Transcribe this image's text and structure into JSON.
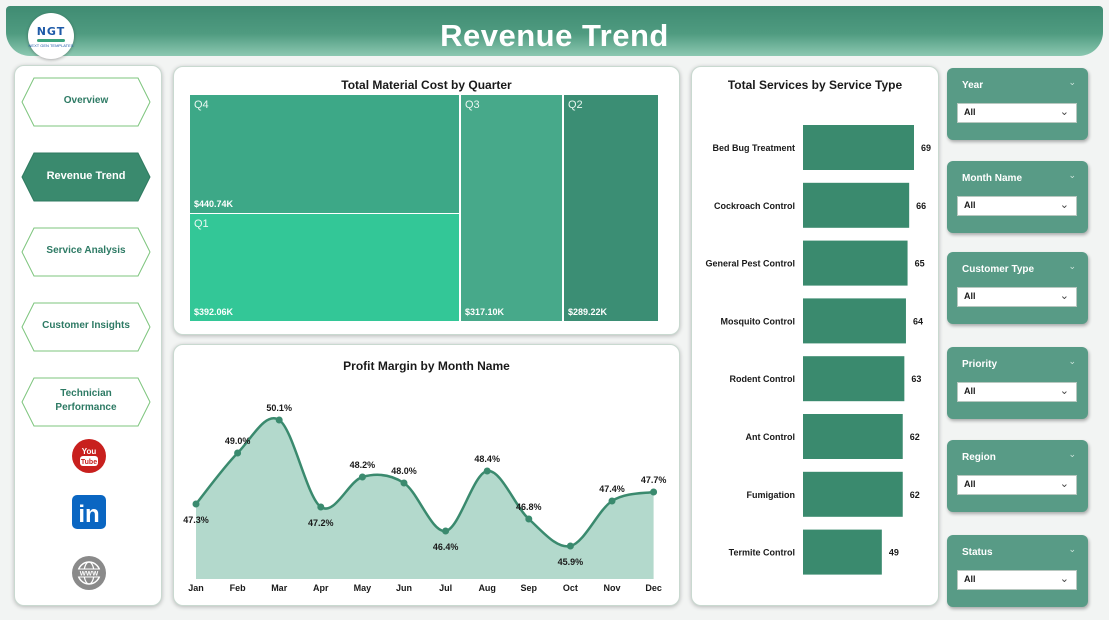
{
  "header": {
    "title": "Revenue Trend",
    "logo_text": "NGT",
    "logo_subtext": "NEXT GEN TEMPLATES"
  },
  "nav": {
    "items": [
      {
        "label": "Overview",
        "active": false
      },
      {
        "label": "Revenue Trend",
        "active": true
      },
      {
        "label": "Service Analysis",
        "active": false
      },
      {
        "label": "Customer Insights",
        "active": false
      },
      {
        "label": "Technician Performance",
        "active": false
      }
    ],
    "social": [
      {
        "name": "youtube",
        "label": "You Tube"
      },
      {
        "name": "linkedin",
        "label": "in"
      },
      {
        "name": "website",
        "label": "www"
      }
    ]
  },
  "colors": {
    "accent": "#3a8a6e",
    "header": "#4f9b80",
    "slicer": "#589b86",
    "treemap_q4": "#3da887",
    "treemap_q1": "#33c797",
    "treemap_q3": "#47a98a",
    "treemap_q2": "#3b8e74",
    "bar": "#3a8a6e",
    "area_fill": "#b3d9cc"
  },
  "charts": {
    "treemap_title": "Total Material Cost by Quarter",
    "line_title": "Profit Margin by Month Name",
    "bar_title": "Total Services by Service Type"
  },
  "chart_data": [
    {
      "type": "treemap",
      "title": "Total Material Cost by Quarter",
      "items": [
        {
          "label": "Q4",
          "value": 440.74,
          "display": "$440.74K"
        },
        {
          "label": "Q1",
          "value": 392.06,
          "display": "$392.06K"
        },
        {
          "label": "Q3",
          "value": 317.1,
          "display": "$317.10K"
        },
        {
          "label": "Q2",
          "value": 289.22,
          "display": "$289.22K"
        }
      ]
    },
    {
      "type": "area",
      "title": "Profit Margin by Month Name",
      "categories": [
        "Jan",
        "Feb",
        "Mar",
        "Apr",
        "May",
        "Jun",
        "Jul",
        "Aug",
        "Sep",
        "Oct",
        "Nov",
        "Dec"
      ],
      "values": [
        47.3,
        49.0,
        50.1,
        47.2,
        48.2,
        48.0,
        46.4,
        48.4,
        46.8,
        45.9,
        47.4,
        47.7
      ],
      "labels": [
        "47.3%",
        "49.0%",
        "50.1%",
        "47.2%",
        "48.2%",
        "48.0%",
        "46.4%",
        "48.4%",
        "46.8%",
        "45.9%",
        "47.4%",
        "47.7%"
      ],
      "ylim": [
        44.8,
        50.8
      ]
    },
    {
      "type": "bar",
      "orientation": "horizontal",
      "title": "Total Services by Service Type",
      "categories": [
        "Bed Bug Treatment",
        "Cockroach Control",
        "General Pest Control",
        "Mosquito Control",
        "Rodent Control",
        "Ant Control",
        "Fumigation",
        "Termite Control"
      ],
      "values": [
        69,
        66,
        65,
        64,
        63,
        62,
        62,
        49
      ],
      "xlim": [
        0,
        69
      ]
    }
  ],
  "slicers": [
    {
      "label": "Year",
      "value": "All"
    },
    {
      "label": "Month Name",
      "value": "All"
    },
    {
      "label": "Customer Type",
      "value": "All"
    },
    {
      "label": "Priority",
      "value": "All"
    },
    {
      "label": "Region",
      "value": "All"
    },
    {
      "label": "Status",
      "value": "All"
    }
  ]
}
